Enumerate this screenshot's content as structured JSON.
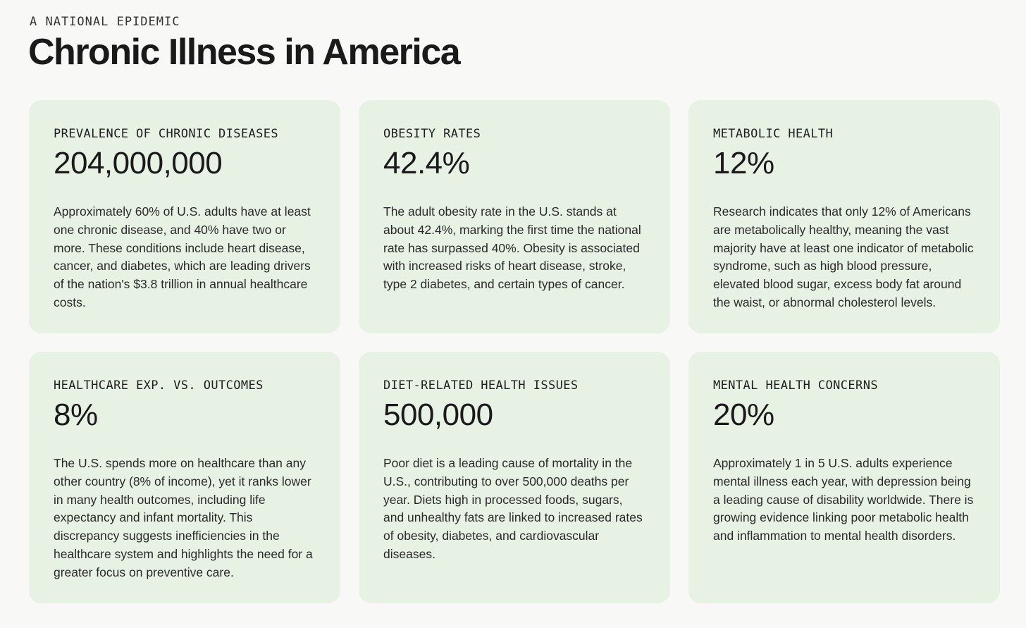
{
  "header": {
    "eyebrow": "A NATIONAL EPIDEMIC",
    "title": "Chronic Illness in America"
  },
  "colors": {
    "background": "#f8f8f6",
    "card": "#e7f1e4",
    "text": "#1a1a1a"
  },
  "cards": [
    {
      "label": "PREVALENCE OF CHRONIC DISEASES",
      "value": "204,000,000",
      "description": "Approximately 60% of U.S. adults have at least one chronic disease, and 40% have two or more. These conditions include heart disease, cancer, and diabetes, which are leading drivers of the nation's $3.8 trillion in annual healthcare costs."
    },
    {
      "label": "OBESITY RATES",
      "value": "42.4%",
      "description": "The adult obesity rate in the U.S. stands at about 42.4%, marking the first time the national rate has surpassed 40%. Obesity is associated with increased risks of heart disease, stroke, type 2 diabetes, and certain types of cancer."
    },
    {
      "label": "METABOLIC HEALTH",
      "value": "12%",
      "description": "Research indicates that only 12% of Americans are metabolically healthy, meaning the vast majority have at least one indicator of metabolic syndrome, such as high blood pressure, elevated blood sugar, excess body fat around the waist, or abnormal cholesterol levels."
    },
    {
      "label": "HEALTHCARE EXP. VS. OUTCOMES",
      "value": "8%",
      "description": "The U.S. spends more on healthcare than any other country (8% of income), yet it ranks lower in many health outcomes, including life expectancy and infant mortality. This discrepancy suggests inefficiencies in the healthcare system and highlights the need for a greater focus on preventive care."
    },
    {
      "label": "DIET-RELATED HEALTH ISSUES",
      "value": "500,000",
      "description": "Poor diet is a leading cause of mortality in the U.S., contributing to over 500,000 deaths per year. Diets high in processed foods, sugars, and unhealthy fats are linked to increased rates of obesity, diabetes, and cardiovascular diseases."
    },
    {
      "label": "MENTAL HEALTH CONCERNS",
      "value": "20%",
      "description": "Approximately 1 in 5 U.S. adults experience mental illness each year, with depression being a leading cause of disability worldwide. There is growing evidence linking poor metabolic health and inflammation to mental health disorders."
    }
  ]
}
